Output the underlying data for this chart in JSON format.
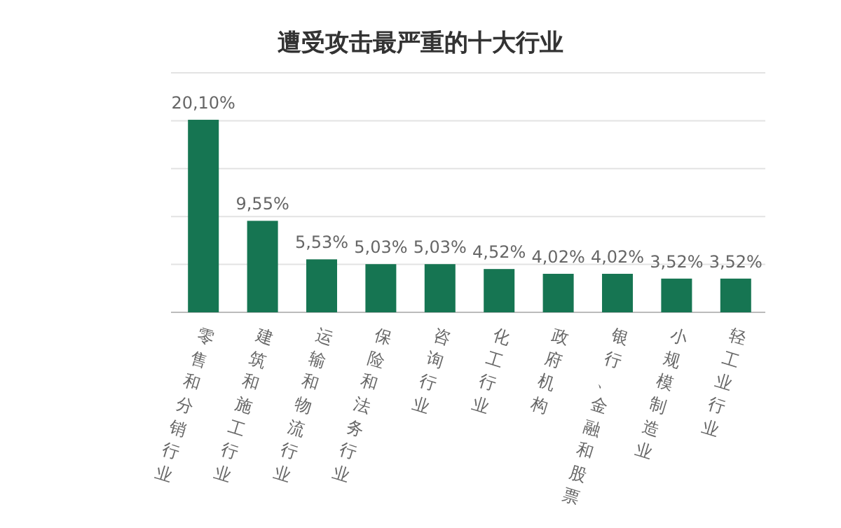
{
  "chart_data": {
    "type": "bar",
    "title": "遭受攻击最严重的十大行业",
    "categories": [
      "零售和分销行业",
      "建筑和施工行业",
      "运输和物流行业",
      "保险和法务行业",
      "咨询行业",
      "化工行业",
      "政府机构",
      "银行、金融和股票",
      "小规模制造业",
      "轻工业行业"
    ],
    "values": [
      20.1,
      9.55,
      5.53,
      5.03,
      5.03,
      4.52,
      4.02,
      4.02,
      3.52,
      3.52
    ],
    "value_labels": [
      "20,10%",
      "9,55%",
      "5,53%",
      "5,03%",
      "5,03%",
      "4,52%",
      "4,02%",
      "4,02%",
      "3,52%",
      "3,52%"
    ],
    "color": "#167552",
    "ylim": [
      0,
      25
    ],
    "yticks": [
      {
        "value": 0,
        "label": null
      },
      {
        "value": 5,
        "label": null
      },
      {
        "value": 10,
        "label": null
      },
      {
        "value": 15,
        "label": null
      },
      {
        "value": 20,
        "label": null
      },
      {
        "value": 25,
        "label": null
      }
    ],
    "grid": "y",
    "tick_labels": "x"
  }
}
